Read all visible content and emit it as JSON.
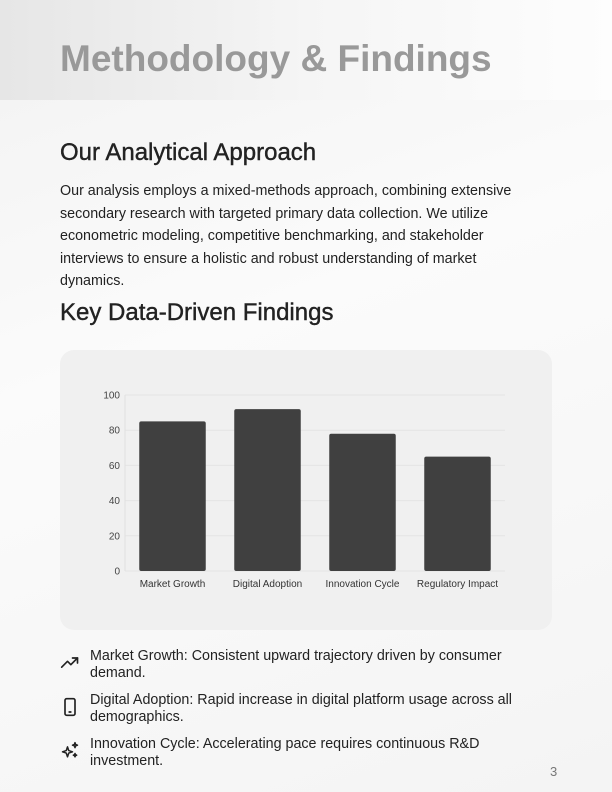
{
  "header": {
    "title": "Methodology & Findings"
  },
  "approach": {
    "heading": "Our Analytical Approach",
    "body": "Our analysis employs a mixed-methods approach, combining extensive secondary research with targeted primary data collection. We utilize econometric modeling, competitive benchmarking, and stakeholder interviews to ensure a holistic and robust understanding of market dynamics."
  },
  "findings_heading": "Key Data-Driven Findings",
  "chart_data": {
    "type": "bar",
    "categories": [
      "Market Growth",
      "Digital Adoption",
      "Innovation Cycle",
      "Regulatory Impact"
    ],
    "values": [
      85,
      92,
      78,
      65
    ],
    "ylim": [
      0,
      100
    ],
    "yticks": [
      "0",
      "20",
      "40",
      "60",
      "80",
      "100"
    ],
    "grid": true,
    "bar_color": "#404040",
    "title": "",
    "xlabel": "",
    "ylabel": ""
  },
  "findings": [
    {
      "icon": "trending-up-icon",
      "text": "Market Growth: Consistent upward trajectory driven by consumer demand."
    },
    {
      "icon": "smartphone-icon",
      "text": "Digital Adoption: Rapid increase in digital platform usage across all demographics."
    },
    {
      "icon": "sparkles-icon",
      "text": "Innovation Cycle: Accelerating pace requires continuous R&D investment."
    }
  ],
  "page_number": "3"
}
